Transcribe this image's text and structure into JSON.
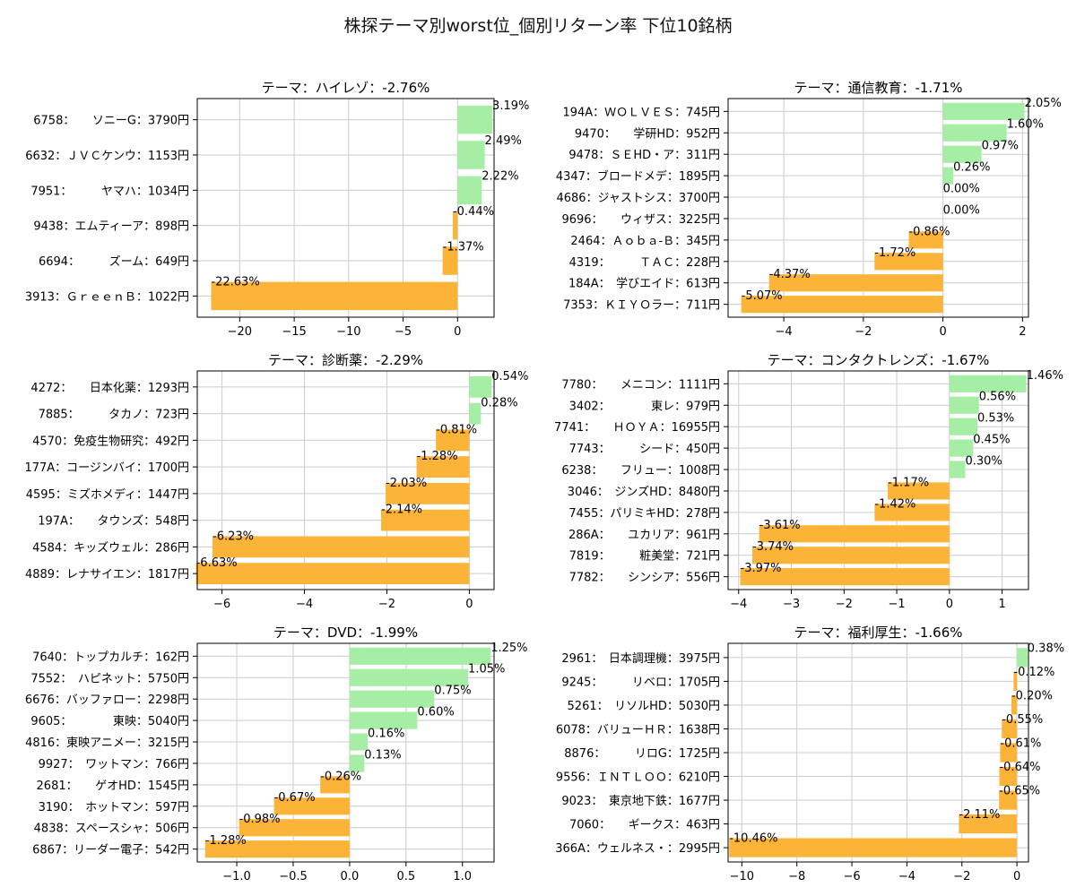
{
  "figure": {
    "title": "株探テーマ別worst位_個別リターン率 下位10銘柄"
  },
  "colors": {
    "positive": "#a6eda6",
    "negative": "#fbb437",
    "grid": "#cccccc",
    "axis": "#000000"
  },
  "chart_data": [
    {
      "type": "bar",
      "orientation": "horizontal",
      "title": "テーマ：ハイレゾ：-2.76%",
      "categories": [
        "6758：　　ソニーG：3790円",
        "6632：ＪＶＣケンウ：1153円",
        "7951：　　　ヤマハ：1034円",
        "9438：エムティーア：898円",
        "6694：　　　ズーム：649円",
        "3913：ＧｒｅｅｎＢ：1022円"
      ],
      "values": [
        3.19,
        2.49,
        2.22,
        -0.44,
        -1.37,
        -22.63
      ],
      "value_labels": [
        "3.19%",
        "2.49%",
        "2.22%",
        "-0.44%",
        "-1.37%",
        "-22.63%"
      ],
      "ticks": [
        -20,
        -15,
        -10,
        -5,
        0
      ],
      "tick_labels": [
        "−20",
        "−15",
        "−10",
        "−5",
        "0"
      ],
      "xlim": [
        -23.9,
        3.35
      ],
      "grid": true
    },
    {
      "type": "bar",
      "orientation": "horizontal",
      "title": "テーマ：通信教育：-1.71%",
      "categories": [
        "194A：ＷＯＬＶＥＳ：745円",
        "9470：　　学研HD：952円",
        "9478：ＳＥHD・ア：311円",
        "4347：ブロードメデ：1895円",
        "4686：ジャストシス：3700円",
        "9696：　　ウィザス：3225円",
        "2464：Ａｏｂａ-Ｂ：345円",
        "4319：　　　ＴＡＣ：228円",
        "184A：　学びエイド：613円",
        "7353：ＫＩＹＯラー：711円"
      ],
      "values": [
        2.05,
        1.6,
        0.97,
        0.26,
        0.0,
        0.0,
        -0.86,
        -1.72,
        -4.37,
        -5.07
      ],
      "value_labels": [
        "2.05%",
        "1.60%",
        "0.97%",
        "0.26%",
        "0.00%",
        "0.00%",
        "-0.86%",
        "-1.72%",
        "-4.37%",
        "-5.07%"
      ],
      "ticks": [
        -4,
        -2,
        0,
        2
      ],
      "tick_labels": [
        "−4",
        "−2",
        "0",
        "2"
      ],
      "xlim": [
        -5.4,
        2.15
      ],
      "grid": true
    },
    {
      "type": "bar",
      "orientation": "horizontal",
      "title": "テーマ：診断薬：-2.29%",
      "categories": [
        "4272：　　日本化薬：1293円",
        "7885：　　　タカノ：723円",
        "4570：免疫生物研究：492円",
        "177A：コージンバイ：1700円",
        "4595：ミズホメディ：1447円",
        "197A：　　タウンズ：548円",
        "4584：キッズウェル：286円",
        "4889：レナサイエン：1817円"
      ],
      "values": [
        0.54,
        0.28,
        -0.81,
        -1.28,
        -2.03,
        -2.14,
        -6.23,
        -6.63
      ],
      "value_labels": [
        "0.54%",
        "0.28%",
        "-0.81%",
        "-1.28%",
        "-2.03%",
        "-2.14%",
        "-6.23%",
        "-6.63%"
      ],
      "ticks": [
        -6,
        -4,
        -2,
        0
      ],
      "tick_labels": [
        "−6",
        "−4",
        "−2",
        "0"
      ],
      "xlim": [
        -6.6,
        0.6
      ],
      "grid": true
    },
    {
      "type": "bar",
      "orientation": "horizontal",
      "title": "テーマ：コンタクトレンズ：-1.67%",
      "categories": [
        "7780：　　メニコン：1111円",
        "3402：　　　　東レ：979円",
        "7741：　　ＨＯＹＡ：16955円",
        "7743：　　　シード：450円",
        "6238：　　フリュー：1008円",
        "3046：　ジンズHD：8480円",
        "7455：パリミキHD：278円",
        "286A：　　ユカリア：961円",
        "7819：　　　粧美堂：721円",
        "7782：　　シンシア：556円"
      ],
      "values": [
        1.46,
        0.56,
        0.53,
        0.45,
        0.3,
        -1.17,
        -1.42,
        -3.61,
        -3.74,
        -3.97
      ],
      "value_labels": [
        "1.46%",
        "0.56%",
        "0.53%",
        "0.45%",
        "0.30%",
        "-1.17%",
        "-1.42%",
        "-3.61%",
        "-3.74%",
        "-3.97%"
      ],
      "ticks": [
        -4,
        -3,
        -2,
        -1,
        0,
        1
      ],
      "tick_labels": [
        "−4",
        "−3",
        "−2",
        "−1",
        "0",
        "1"
      ],
      "xlim": [
        -4.2,
        1.5
      ],
      "grid": true
    },
    {
      "type": "bar",
      "orientation": "horizontal",
      "title": "テーマ：DVD：-1.99%",
      "categories": [
        "7640：トップカルチ：162円",
        "7552：　ハピネット：5750円",
        "6676：バッファロー：2298円",
        "9605：　　　　東映：5040円",
        "4816：東映アニメー：3215円",
        "9927：　ワットマン：766円",
        "2681：　　ゲオHD：1545円",
        "3190：　ホットマン：597円",
        "4838：スペースシャ：506円",
        "6867：リーダー電子：542円"
      ],
      "values": [
        1.25,
        1.05,
        0.75,
        0.6,
        0.16,
        0.13,
        -0.26,
        -0.67,
        -0.98,
        -1.28
      ],
      "value_labels": [
        "1.25%",
        "1.05%",
        "0.75%",
        "0.60%",
        "0.16%",
        "0.13%",
        "-0.26%",
        "-0.67%",
        "-0.98%",
        "-1.28%"
      ],
      "ticks": [
        -1.0,
        -0.5,
        0.0,
        0.5,
        1.0
      ],
      "tick_labels": [
        "−1.0",
        "−0.5",
        "0.0",
        "0.5",
        "1.0"
      ],
      "xlim": [
        -1.35,
        1.28
      ],
      "grid": true
    },
    {
      "type": "bar",
      "orientation": "horizontal",
      "title": "テーマ：福利厚生：-1.66%",
      "categories": [
        "2961：　日本調理機：3975円",
        "9245：　　　リベロ：1705円",
        "5261：　リソルHD：5030円",
        "6078：バリューＨＲ：1638円",
        "8876：　　　リロG：1725円",
        "9556：ＩＮＴＬＯＯ：6210円",
        "9023：　東京地下鉄：1677円",
        "7060：　　ギークス：463円",
        "366A：ウェルネス・：2995円"
      ],
      "values": [
        0.38,
        -0.12,
        -0.2,
        -0.55,
        -0.61,
        -0.64,
        -0.65,
        -2.11,
        -10.46
      ],
      "value_labels": [
        "0.38%",
        "-0.12%",
        "-0.20%",
        "-0.55%",
        "-0.61%",
        "-0.64%",
        "-0.65%",
        "-2.11%",
        "-10.46%"
      ],
      "ticks": [
        -10,
        -8,
        -6,
        -4,
        -2,
        0
      ],
      "tick_labels": [
        "−10",
        "−8",
        "−6",
        "−4",
        "−2",
        "0"
      ],
      "xlim": [
        -10.5,
        0.42
      ],
      "grid": true
    }
  ]
}
